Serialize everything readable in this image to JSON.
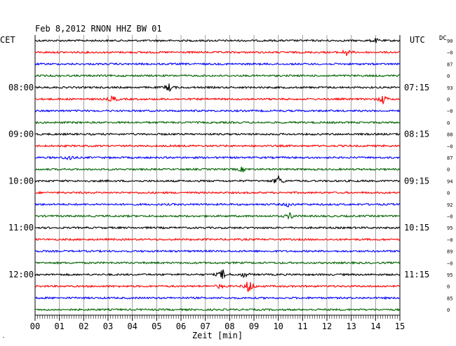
{
  "chart_data": {
    "type": "line",
    "title": "Feb 8,2012   RNON HHZ BW 01",
    "left_axis_label": "CET",
    "right_axis_label": "UTC",
    "dc_label": "DC",
    "xlabel": "Zeit [min]",
    "xlim": [
      0,
      15
    ],
    "x_ticks": [
      "00",
      "01",
      "02",
      "03",
      "04",
      "05",
      "06",
      "07",
      "08",
      "09",
      "10",
      "11",
      "12",
      "13",
      "14",
      "15"
    ],
    "minutes_per_trace": 15,
    "trace_colors": [
      "#000000",
      "#ff0000",
      "#0000ff",
      "#006400"
    ],
    "left_hour_labels": [
      {
        "trace": 4,
        "label": "08:00"
      },
      {
        "trace": 8,
        "label": "09:00"
      },
      {
        "trace": 12,
        "label": "10:00"
      },
      {
        "trace": 16,
        "label": "11:00"
      },
      {
        "trace": 20,
        "label": "12:00"
      }
    ],
    "right_hour_labels": [
      {
        "trace": 4,
        "label": "07:15"
      },
      {
        "trace": 8,
        "label": "08:15"
      },
      {
        "trace": 12,
        "label": "09:15"
      },
      {
        "trace": 16,
        "label": "10:15"
      },
      {
        "trace": 20,
        "label": "11:15"
      }
    ],
    "dc_values": [
      "90",
      "−0",
      "87",
      "0",
      "93",
      "0",
      "−0",
      "0",
      "88",
      "−0",
      "87",
      "0",
      "94",
      "0",
      "92",
      "−0",
      "95",
      "−0",
      "89",
      "−0",
      "95",
      "0",
      "85",
      "0"
    ],
    "events": [
      {
        "trace": 0,
        "minute": 14.0,
        "amp": 3
      },
      {
        "trace": 1,
        "minute": 12.8,
        "amp": 5
      },
      {
        "trace": 4,
        "minute": 5.5,
        "amp": 6
      },
      {
        "trace": 5,
        "minute": 3.2,
        "amp": 5
      },
      {
        "trace": 5,
        "minute": 14.3,
        "amp": 7
      },
      {
        "trace": 10,
        "minute": 1.4,
        "amp": 5
      },
      {
        "trace": 11,
        "minute": 8.5,
        "amp": 3
      },
      {
        "trace": 12,
        "minute": 10.0,
        "amp": 8
      },
      {
        "trace": 14,
        "minute": 10.4,
        "amp": 3
      },
      {
        "trace": 15,
        "minute": 10.5,
        "amp": 5
      },
      {
        "trace": 20,
        "minute": 7.7,
        "amp": 8
      },
      {
        "trace": 20,
        "minute": 8.6,
        "amp": 4
      },
      {
        "trace": 21,
        "minute": 8.8,
        "amp": 12
      },
      {
        "trace": 21,
        "minute": 7.6,
        "amp": 3
      }
    ]
  }
}
